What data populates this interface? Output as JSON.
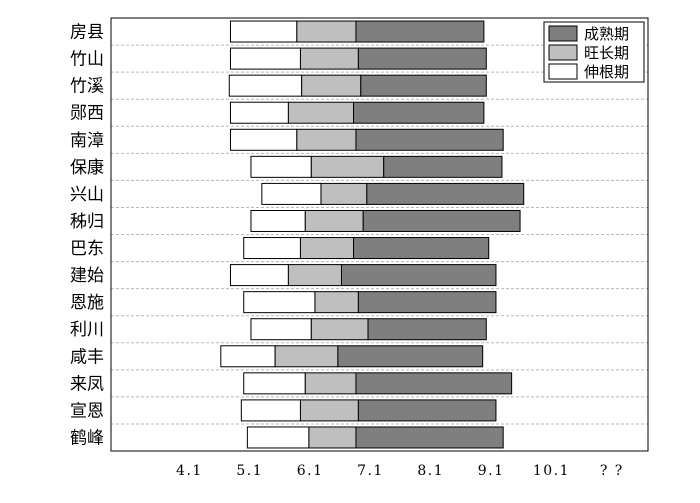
{
  "chart_data": {
    "type": "bar",
    "orientation": "horizontal",
    "stacked": true,
    "categories": [
      "房县",
      "竹山",
      "竹溪",
      "郧西",
      "南漳",
      "保康",
      "兴山",
      "秭归",
      "巴东",
      "建始",
      "恩施",
      "利川",
      "咸丰",
      "来凤",
      "宣恩",
      "鹤峰"
    ],
    "series": [
      {
        "name": "伸根期",
        "color": "#ffffff",
        "start": [
          4.78,
          4.78,
          4.76,
          4.78,
          4.78,
          5.12,
          5.3,
          5.12,
          5.0,
          4.78,
          5.0,
          5.12,
          4.62,
          5.0,
          4.96,
          5.06
        ],
        "end": [
          5.88,
          5.94,
          5.96,
          5.74,
          5.88,
          6.12,
          6.28,
          6.02,
          5.94,
          5.74,
          6.18,
          6.12,
          5.52,
          6.02,
          5.94,
          6.08
        ]
      },
      {
        "name": "旺长期",
        "color": "#bfbfbf",
        "start": [
          5.88,
          5.94,
          5.96,
          5.74,
          5.88,
          6.12,
          6.28,
          6.02,
          5.94,
          5.74,
          6.18,
          6.12,
          5.52,
          6.02,
          5.94,
          6.08
        ],
        "end": [
          6.86,
          6.9,
          6.94,
          6.82,
          6.86,
          7.32,
          7.04,
          6.98,
          6.82,
          6.62,
          6.9,
          7.06,
          6.56,
          6.86,
          6.9,
          6.86
        ]
      },
      {
        "name": "成熟期",
        "color": "#7f7f7f",
        "start": [
          6.86,
          6.9,
          6.94,
          6.82,
          6.86,
          7.32,
          7.04,
          6.98,
          6.82,
          6.62,
          6.9,
          7.06,
          6.56,
          6.86,
          6.9,
          6.86
        ],
        "end": [
          8.98,
          9.02,
          9.02,
          8.98,
          9.3,
          9.28,
          9.64,
          9.58,
          9.06,
          9.18,
          9.18,
          9.02,
          8.96,
          9.44,
          9.18,
          9.3
        ]
      }
    ],
    "x_ticks": [
      "4.1",
      "5.1",
      "6.1",
      "7.1",
      "8.1",
      "9.1",
      "10.1",
      "? ?"
    ],
    "x_tick_values": [
      4.1,
      5.1,
      6.1,
      7.1,
      8.1,
      9.1,
      10.1,
      11.1
    ],
    "xlim": [
      2.8,
      11.7
    ],
    "legend": {
      "position": "top-right",
      "entries": [
        "成熟期",
        "旺长期",
        "伸根期"
      ]
    },
    "grid": {
      "horizontal_dashed_between_rows": true,
      "vertical": false
    },
    "title": "",
    "xlabel": "",
    "ylabel": ""
  }
}
